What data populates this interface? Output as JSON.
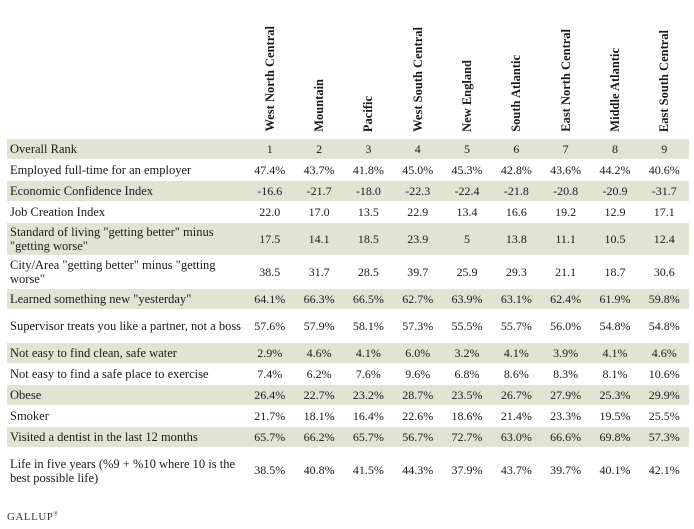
{
  "columns": [
    "West North Central",
    "Mountain",
    "Pacific",
    "West South Central",
    "New England",
    "South Atlantic",
    "East North Central",
    "Middle Atlantic",
    "East South Central"
  ],
  "rows": [
    {
      "label": "Overall Rank",
      "values": [
        "1",
        "2",
        "3",
        "4",
        "5",
        "6",
        "7",
        "8",
        "9"
      ]
    },
    {
      "label": "Employed full-time for an employer",
      "values": [
        "47.4%",
        "43.7%",
        "41.8%",
        "45.0%",
        "45.3%",
        "42.8%",
        "43.6%",
        "44.2%",
        "40.6%"
      ]
    },
    {
      "label": "Economic Confidence Index",
      "values": [
        "-16.6",
        "-21.7",
        "-18.0",
        "-22.3",
        "-22.4",
        "-21.8",
        "-20.8",
        "-20.9",
        "-31.7"
      ]
    },
    {
      "label": "Job Creation Index",
      "values": [
        "22.0",
        "17.0",
        "13.5",
        "22.9",
        "13.4",
        "16.6",
        "19.2",
        "12.9",
        "17.1"
      ]
    },
    {
      "label": "Standard of living \"getting better\" minus \"getting worse\"",
      "values": [
        "17.5",
        "14.1",
        "18.5",
        "23.9",
        "5",
        "13.8",
        "11.1",
        "10.5",
        "12.4"
      ]
    },
    {
      "label": "City/Area \"getting better\" minus \"getting worse\"",
      "values": [
        "38.5",
        "31.7",
        "28.5",
        "39.7",
        "25.9",
        "29.3",
        "21.1",
        "18.7",
        "30.6"
      ]
    },
    {
      "label": "Learned something new \"yesterday\"",
      "values": [
        "64.1%",
        "66.3%",
        "66.5%",
        "62.7%",
        "63.9%",
        "63.1%",
        "62.4%",
        "61.9%",
        "59.8%"
      ]
    },
    {
      "label": "Supervisor treats you like a partner, not a boss",
      "values": [
        "57.6%",
        "57.9%",
        "58.1%",
        "57.3%",
        "55.5%",
        "55.7%",
        "56.0%",
        "54.8%",
        "54.8%"
      ]
    },
    {
      "label": "Not easy to find clean, safe water",
      "values": [
        "2.9%",
        "4.6%",
        "4.1%",
        "6.0%",
        "3.2%",
        "4.1%",
        "3.9%",
        "4.1%",
        "4.6%"
      ]
    },
    {
      "label": "Not easy to find a safe place to exercise",
      "values": [
        "7.4%",
        "6.2%",
        "7.6%",
        "9.6%",
        "6.8%",
        "8.6%",
        "8.3%",
        "8.1%",
        "10.6%"
      ]
    },
    {
      "label": "Obese",
      "values": [
        "26.4%",
        "22.7%",
        "23.2%",
        "28.7%",
        "23.5%",
        "26.7%",
        "27.9%",
        "25.3%",
        "29.9%"
      ]
    },
    {
      "label": "Smoker",
      "values": [
        "21.7%",
        "18.1%",
        "16.4%",
        "22.6%",
        "18.6%",
        "21.4%",
        "23.3%",
        "19.5%",
        "25.5%"
      ]
    },
    {
      "label": "Visited a dentist in the last 12 months",
      "values": [
        "65.7%",
        "66.2%",
        "65.7%",
        "56.7%",
        "72.7%",
        "63.0%",
        "66.6%",
        "69.8%",
        "57.3%"
      ]
    },
    {
      "label": "Life in five years (%9 + %10 where 10 is the best possible life)",
      "values": [
        "38.5%",
        "40.8%",
        "41.5%",
        "44.3%",
        "37.9%",
        "43.7%",
        "39.7%",
        "40.1%",
        "42.1%"
      ]
    }
  ],
  "footer": {
    "brand": "GALLUP",
    "mark": "®"
  }
}
